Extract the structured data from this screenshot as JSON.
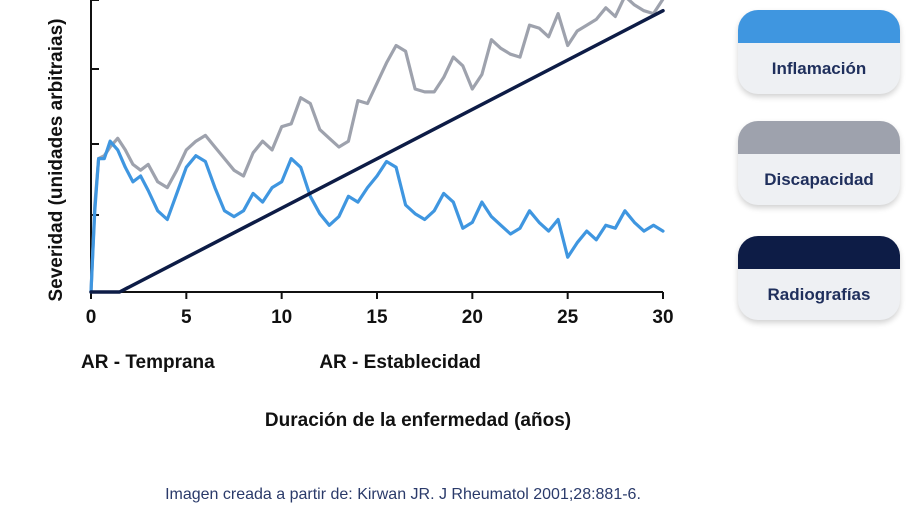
{
  "chart_data": {
    "type": "line",
    "ylabel": "Severidad (unidades arbitraias)",
    "xlabel": "Duración de la enfermedad (años)",
    "xlim": [
      0,
      30
    ],
    "ylim": [
      0,
      10
    ],
    "x_ticks": [
      0,
      5,
      10,
      15,
      20,
      25,
      30
    ],
    "phase_labels": [
      {
        "text": "AR - Temprana",
        "x": 0
      },
      {
        "text": "AR - Establecidad",
        "x": 12.5
      }
    ],
    "grid": false,
    "series": [
      {
        "name": "Discapacidad",
        "color": "#9ea2ad",
        "x": [
          0,
          0.2,
          0.4,
          0.7,
          1.0,
          1.4,
          1.8,
          2.2,
          2.6,
          3.0,
          3.5,
          4.0,
          4.5,
          5.0,
          5.5,
          6.0,
          6.5,
          7.0,
          7.5,
          8.0,
          8.5,
          9.0,
          9.5,
          10.0,
          10.5,
          11.0,
          11.5,
          12.0,
          12.5,
          13.0,
          13.5,
          14.0,
          14.5,
          15.0,
          15.5,
          16.0,
          16.5,
          17.0,
          17.5,
          18.0,
          18.5,
          19.0,
          19.5,
          20.0,
          20.5,
          21.0,
          21.5,
          22.0,
          22.5,
          23.0,
          23.5,
          24.0,
          24.5,
          25.0,
          25.5,
          26.0,
          26.5,
          27.0,
          27.5,
          28.0,
          28.5,
          29.0,
          29.5,
          30.0
        ],
        "values": [
          0,
          3.0,
          4.6,
          4.7,
          5.0,
          5.3,
          4.9,
          4.4,
          4.2,
          4.4,
          3.8,
          3.6,
          4.2,
          4.9,
          5.2,
          5.4,
          5.0,
          4.6,
          4.2,
          4.0,
          4.8,
          5.2,
          4.9,
          5.7,
          5.8,
          6.7,
          6.5,
          5.6,
          5.3,
          5.0,
          5.2,
          6.6,
          6.5,
          7.2,
          7.9,
          8.5,
          8.3,
          7.0,
          6.9,
          6.9,
          7.4,
          8.1,
          7.8,
          7.0,
          7.5,
          8.7,
          8.4,
          8.2,
          8.1,
          9.2,
          9.1,
          8.8,
          9.6,
          8.5,
          9.0,
          9.2,
          9.4,
          9.8,
          9.5,
          10.2,
          9.9,
          9.7,
          9.6,
          10.1
        ]
      },
      {
        "name": "Inflamación",
        "color": "#3f96e0",
        "x": [
          0,
          0.2,
          0.4,
          0.7,
          1.0,
          1.4,
          1.8,
          2.2,
          2.6,
          3.0,
          3.5,
          4.0,
          4.5,
          5.0,
          5.5,
          6.0,
          6.5,
          7.0,
          7.5,
          8.0,
          8.5,
          9.0,
          9.5,
          10.0,
          10.5,
          11.0,
          11.5,
          12.0,
          12.5,
          13.0,
          13.5,
          14.0,
          14.5,
          15.0,
          15.5,
          16.0,
          16.5,
          17.0,
          17.5,
          18.0,
          18.5,
          19.0,
          19.5,
          20.0,
          20.5,
          21.0,
          21.5,
          22.0,
          22.5,
          23.0,
          23.5,
          24.0,
          24.5,
          25.0,
          25.5,
          26.0,
          26.5,
          27.0,
          27.5,
          28.0,
          28.5,
          29.0,
          29.5,
          30.0
        ],
        "values": [
          0,
          2.8,
          4.6,
          4.6,
          5.2,
          4.9,
          4.3,
          3.8,
          4.0,
          3.5,
          2.8,
          2.5,
          3.4,
          4.3,
          4.7,
          4.5,
          3.6,
          2.8,
          2.6,
          2.8,
          3.4,
          3.1,
          3.6,
          3.8,
          4.6,
          4.3,
          3.3,
          2.7,
          2.3,
          2.6,
          3.3,
          3.1,
          3.6,
          4.0,
          4.5,
          4.3,
          3.0,
          2.7,
          2.5,
          2.8,
          3.4,
          3.1,
          2.2,
          2.4,
          3.1,
          2.6,
          2.3,
          2.0,
          2.2,
          2.8,
          2.4,
          2.1,
          2.5,
          1.2,
          1.7,
          2.1,
          1.8,
          2.3,
          2.2,
          2.8,
          2.4,
          2.1,
          2.3,
          2.1
        ]
      },
      {
        "name": "Radiografías",
        "color": "#0d1c46",
        "x": [
          0,
          1.5,
          30
        ],
        "values": [
          0,
          0,
          9.7
        ]
      }
    ],
    "legend": {
      "placement": "right",
      "items": [
        {
          "label": "Inflamación",
          "color": "#3f96e0"
        },
        {
          "label": "Discapacidad",
          "color": "#9ea2ad"
        },
        {
          "label": "Radiografías",
          "color": "#0d1c46"
        }
      ]
    }
  },
  "footer": {
    "citation": "Imagen creada a partir de: Kirwan JR. J Rheumatol 2001;28:881-6."
  }
}
